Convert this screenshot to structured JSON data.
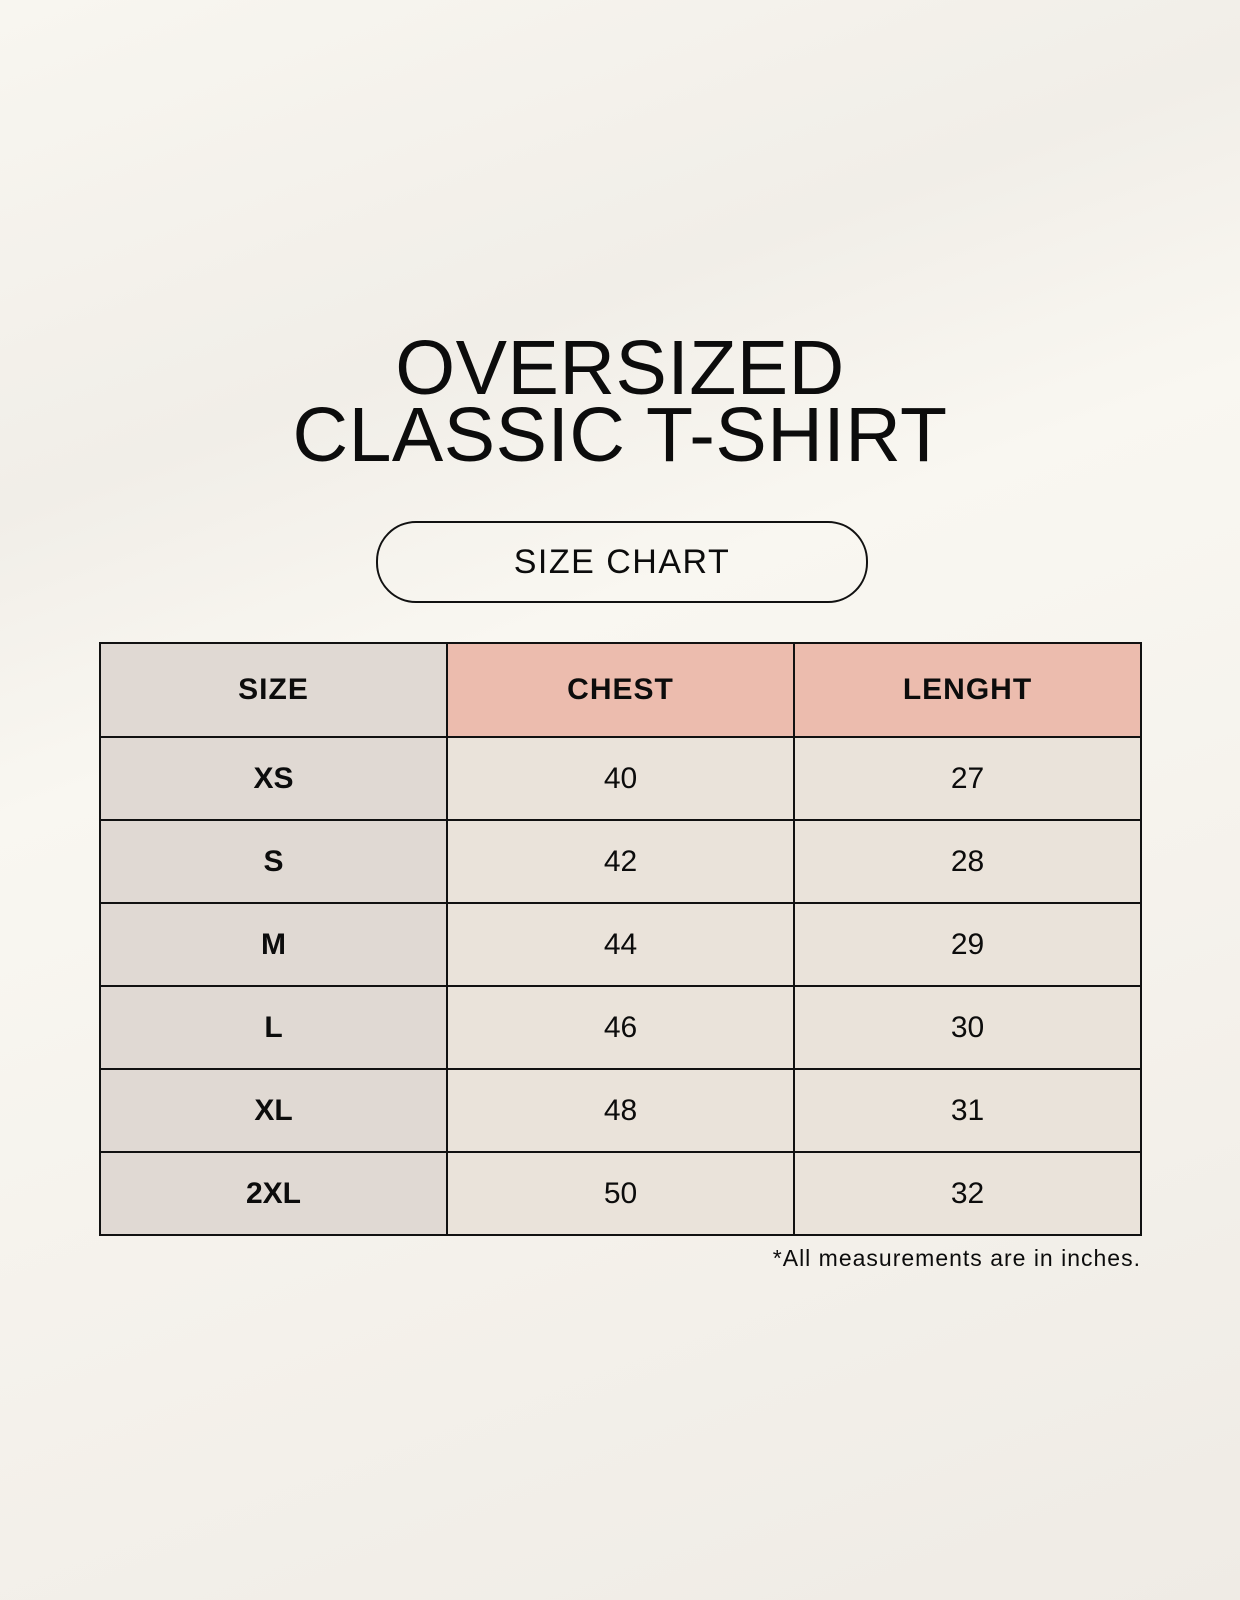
{
  "title": {
    "line1": "OVERSIZED",
    "line2": "CLASSIC T-SHIRT"
  },
  "badge": "SIZE CHART",
  "colors": {
    "header_accent": "#ecbcae",
    "size_column": "#e0d9d3",
    "cells": "#eae3da"
  },
  "table": {
    "headers": [
      "SIZE",
      "CHEST",
      "LENGHT"
    ],
    "rows": [
      [
        "XS",
        "40",
        "27"
      ],
      [
        "S",
        "42",
        "28"
      ],
      [
        "M",
        "44",
        "29"
      ],
      [
        "L",
        "46",
        "30"
      ],
      [
        "XL",
        "48",
        "31"
      ],
      [
        "2XL",
        "50",
        "32"
      ]
    ]
  },
  "note": "*All measurements are in inches."
}
